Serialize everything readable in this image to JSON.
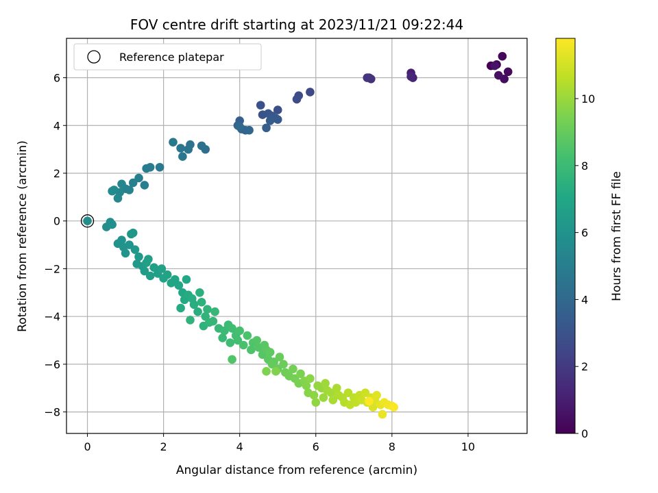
{
  "chart_data": {
    "type": "scatter",
    "title": "FOV centre drift starting at 2023/11/21 09:22:44",
    "xlabel": "Angular distance from reference (arcmin)",
    "ylabel": "Rotation from reference (arcmin)",
    "xlim": [
      -0.55,
      11.55
    ],
    "ylim": [
      -8.9,
      7.65
    ],
    "xticks": [
      0,
      2,
      4,
      6,
      8,
      10
    ],
    "yticks": [
      -8,
      -6,
      -4,
      -2,
      0,
      2,
      4,
      6
    ],
    "grid": true,
    "legend": {
      "placement": "top-left",
      "entries": [
        "Reference platepar"
      ]
    },
    "reference_point": {
      "x": 0,
      "y": 0,
      "label": "Reference platepar"
    },
    "colorbar": {
      "label": "Hours from first FF file",
      "colormap": "viridis",
      "range": [
        0,
        11.8
      ],
      "ticks": [
        0,
        2,
        4,
        6,
        8,
        10
      ]
    },
    "point_series": [
      {
        "name": "",
        "hours_range": [
          0.0,
          0.6
        ],
        "points": [
          [
            10.6,
            6.5
          ],
          [
            10.75,
            6.55
          ],
          [
            10.9,
            6.9
          ],
          [
            11.05,
            6.25
          ],
          [
            10.95,
            5.95
          ],
          [
            10.8,
            6.1
          ],
          [
            10.7,
            6.5
          ]
        ]
      },
      {
        "name": "",
        "hours_range": [
          1.0,
          1.8
        ],
        "points": [
          [
            8.5,
            6.2
          ],
          [
            8.55,
            6.0
          ],
          [
            8.5,
            6.05
          ],
          [
            7.4,
            6.0
          ],
          [
            7.45,
            5.95
          ],
          [
            7.35,
            6.0
          ]
        ]
      },
      {
        "name": "",
        "hours_range": [
          2.6,
          4.0
        ],
        "points": [
          [
            5.85,
            5.4
          ],
          [
            5.55,
            5.25
          ],
          [
            5.5,
            5.1
          ],
          [
            5.0,
            4.65
          ],
          [
            4.55,
            4.85
          ],
          [
            4.6,
            4.45
          ],
          [
            4.75,
            4.5
          ],
          [
            4.85,
            4.4
          ],
          [
            4.95,
            4.3
          ],
          [
            5.0,
            4.25
          ],
          [
            4.8,
            4.2
          ],
          [
            4.7,
            3.9
          ],
          [
            4.0,
            4.2
          ],
          [
            3.95,
            4.0
          ],
          [
            4.05,
            3.85
          ],
          [
            4.15,
            3.8
          ],
          [
            4.25,
            3.8
          ],
          [
            4.0,
            3.95
          ]
        ]
      },
      {
        "name": "",
        "hours_range": [
          4.3,
          5.6
        ],
        "points": [
          [
            3.1,
            3.0
          ],
          [
            3.0,
            3.15
          ],
          [
            2.7,
            3.2
          ],
          [
            2.65,
            3.0
          ],
          [
            2.45,
            3.05
          ],
          [
            2.5,
            2.7
          ],
          [
            2.25,
            3.3
          ],
          [
            1.9,
            2.25
          ],
          [
            1.65,
            2.25
          ],
          [
            1.55,
            2.2
          ],
          [
            1.5,
            1.5
          ],
          [
            1.35,
            1.8
          ],
          [
            1.2,
            1.6
          ],
          [
            1.1,
            1.3
          ],
          [
            1.0,
            1.35
          ],
          [
            0.9,
            1.55
          ],
          [
            0.85,
            1.2
          ],
          [
            0.8,
            0.95
          ],
          [
            0.7,
            1.3
          ],
          [
            0.65,
            1.25
          ]
        ]
      },
      {
        "name": "",
        "hours_range": [
          5.7,
          6.6
        ],
        "points": [
          [
            0.0,
            0.0
          ],
          [
            0.5,
            -0.25
          ],
          [
            0.6,
            -0.05
          ],
          [
            0.65,
            -0.15
          ],
          [
            0.8,
            -0.95
          ],
          [
            0.9,
            -0.8
          ],
          [
            0.95,
            -1.1
          ],
          [
            1.0,
            -1.35
          ],
          [
            1.1,
            -1.0
          ],
          [
            1.2,
            -0.5
          ],
          [
            1.15,
            -0.55
          ],
          [
            1.25,
            -1.2
          ],
          [
            1.35,
            -1.5
          ],
          [
            1.3,
            -1.8
          ],
          [
            1.45,
            -1.9
          ],
          [
            1.5,
            -2.1
          ],
          [
            1.6,
            -1.6
          ],
          [
            1.65,
            -2.3
          ],
          [
            1.55,
            -1.75
          ]
        ]
      },
      {
        "name": "",
        "hours_range": [
          6.6,
          7.6
        ],
        "points": [
          [
            1.75,
            -1.95
          ],
          [
            1.85,
            -2.2
          ],
          [
            1.95,
            -2.0
          ],
          [
            2.0,
            -2.4
          ],
          [
            2.1,
            -2.25
          ],
          [
            2.2,
            -2.6
          ],
          [
            2.3,
            -2.45
          ],
          [
            2.4,
            -2.7
          ],
          [
            2.5,
            -3.0
          ],
          [
            2.6,
            -2.45
          ],
          [
            2.55,
            -3.3
          ],
          [
            2.45,
            -3.65
          ],
          [
            2.65,
            -3.1
          ],
          [
            2.75,
            -3.25
          ],
          [
            2.8,
            -3.5
          ],
          [
            2.9,
            -3.8
          ],
          [
            2.95,
            -3.0
          ],
          [
            3.0,
            -3.4
          ],
          [
            3.05,
            -4.4
          ],
          [
            2.7,
            -4.15
          ]
        ]
      },
      {
        "name": "",
        "hours_range": [
          7.6,
          8.6
        ],
        "points": [
          [
            3.1,
            -4.0
          ],
          [
            3.15,
            -3.7
          ],
          [
            3.2,
            -4.25
          ],
          [
            3.3,
            -4.2
          ],
          [
            3.35,
            -3.8
          ],
          [
            3.45,
            -4.5
          ],
          [
            3.55,
            -4.9
          ],
          [
            3.6,
            -4.6
          ],
          [
            3.7,
            -4.35
          ],
          [
            3.75,
            -5.1
          ],
          [
            3.8,
            -4.5
          ],
          [
            3.9,
            -4.8
          ],
          [
            3.95,
            -5.0
          ],
          [
            4.0,
            -4.6
          ],
          [
            4.1,
            -5.2
          ],
          [
            4.2,
            -4.8
          ],
          [
            4.3,
            -5.4
          ],
          [
            4.35,
            -5.1
          ],
          [
            3.8,
            -5.8
          ],
          [
            4.45,
            -5.0
          ]
        ]
      },
      {
        "name": "",
        "hours_range": [
          8.6,
          9.6
        ],
        "points": [
          [
            4.5,
            -5.3
          ],
          [
            4.6,
            -5.6
          ],
          [
            4.65,
            -5.2
          ],
          [
            4.7,
            -5.4
          ],
          [
            4.75,
            -5.8
          ],
          [
            4.8,
            -5.5
          ],
          [
            4.9,
            -5.9
          ],
          [
            4.85,
            -6.0
          ],
          [
            5.0,
            -6.2
          ],
          [
            5.05,
            -5.7
          ],
          [
            5.15,
            -6.0
          ],
          [
            5.2,
            -6.35
          ],
          [
            5.3,
            -6.5
          ],
          [
            5.4,
            -6.2
          ],
          [
            5.45,
            -6.6
          ],
          [
            5.55,
            -6.8
          ],
          [
            5.6,
            -6.4
          ],
          [
            4.7,
            -6.3
          ],
          [
            4.95,
            -6.3
          ],
          [
            5.7,
            -6.7
          ]
        ]
      },
      {
        "name": "",
        "hours_range": [
          9.6,
          10.6
        ],
        "points": [
          [
            5.75,
            -6.9
          ],
          [
            5.8,
            -7.2
          ],
          [
            5.85,
            -6.6
          ],
          [
            5.95,
            -7.3
          ],
          [
            6.0,
            -7.6
          ],
          [
            6.05,
            -6.9
          ],
          [
            6.15,
            -7.0
          ],
          [
            6.2,
            -7.4
          ],
          [
            6.25,
            -6.8
          ],
          [
            6.3,
            -7.1
          ],
          [
            6.4,
            -7.2
          ],
          [
            6.45,
            -7.5
          ],
          [
            6.55,
            -7.0
          ],
          [
            6.6,
            -7.3
          ],
          [
            6.7,
            -7.4
          ],
          [
            6.75,
            -7.6
          ],
          [
            6.85,
            -7.2
          ],
          [
            6.9,
            -7.7
          ]
        ]
      },
      {
        "name": "",
        "hours_range": [
          10.6,
          11.8
        ],
        "points": [
          [
            7.0,
            -7.4
          ],
          [
            7.05,
            -7.6
          ],
          [
            7.15,
            -7.3
          ],
          [
            7.2,
            -7.5
          ],
          [
            7.3,
            -7.2
          ],
          [
            7.35,
            -7.6
          ],
          [
            7.45,
            -7.4
          ],
          [
            7.5,
            -7.8
          ],
          [
            7.55,
            -7.5
          ],
          [
            7.6,
            -7.3
          ],
          [
            7.7,
            -7.7
          ],
          [
            7.75,
            -8.1
          ],
          [
            7.8,
            -7.6
          ],
          [
            7.9,
            -7.7
          ],
          [
            8.0,
            -7.75
          ],
          [
            8.05,
            -7.8
          ],
          [
            7.4,
            -7.55
          ]
        ]
      }
    ]
  }
}
